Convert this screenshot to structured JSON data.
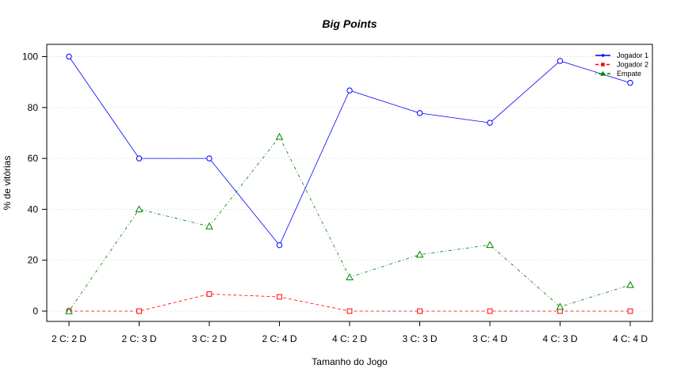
{
  "chart_data": {
    "type": "line",
    "title": "Big Points",
    "xlabel": "Tamanho do Jogo",
    "ylabel": "% de vitórias",
    "categories": [
      "2 C: 2 D",
      "2 C: 3 D",
      "3 C: 2 D",
      "2 C: 4 D",
      "4 C: 2 D",
      "3 C: 3 D",
      "3 C: 4 D",
      "4 C: 3 D",
      "4 C: 4 D"
    ],
    "yticks": [
      0,
      20,
      40,
      60,
      80,
      100
    ],
    "ylim": [
      -4,
      104
    ],
    "grid": "horizontal dotted",
    "legend_position": "top-right",
    "series": [
      {
        "name": "Jogador 1",
        "color": "#0000ff",
        "marker": "circle",
        "line": "solid",
        "values": [
          100,
          60,
          60,
          25.9,
          86.7,
          77.8,
          74,
          98.3,
          89.7
        ]
      },
      {
        "name": "Jogador 2",
        "color": "#ff0000",
        "marker": "square",
        "line": "dashed",
        "values": [
          0,
          0,
          6.7,
          5.6,
          0,
          0,
          0,
          0,
          0
        ]
      },
      {
        "name": "Empate",
        "color": "#008000",
        "marker": "triangle",
        "line": "dotdash",
        "values": [
          0,
          40,
          33.3,
          68.5,
          13.3,
          22.2,
          26,
          1.7,
          10.3
        ]
      }
    ]
  }
}
